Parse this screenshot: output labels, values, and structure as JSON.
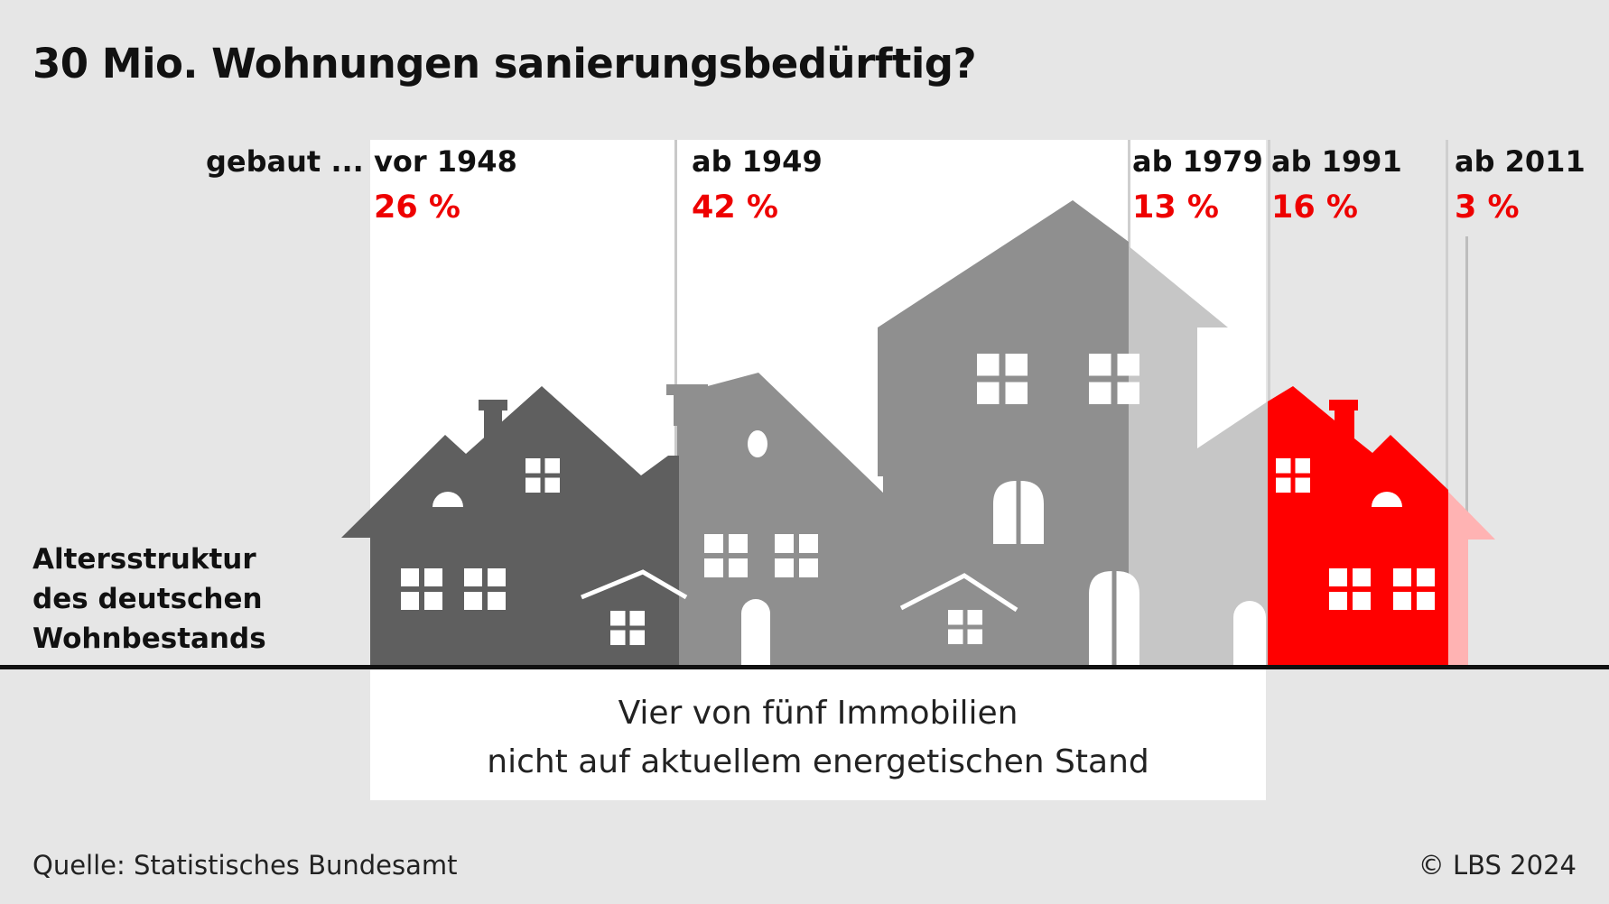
{
  "title": "30 Mio. Wohnungen sanierungsbedürftig?",
  "built_prefix": "gebaut ...",
  "side_label": [
    "Altersstruktur",
    "des deutschen",
    "Wohnbestands"
  ],
  "summary": [
    "Vier von fünf Immobilien",
    "nicht auf aktuellem energetischen Stand"
  ],
  "source": "Quelle: Statistisches Bundesamt",
  "copyright": "© LBS 2024",
  "colors": {
    "background": "#e6e6e6",
    "highlight_panel": "#ffffff",
    "accent_red": "#ee0000",
    "house_vor_1948": "#5f5f5f",
    "house_ab_1949": "#8f8f8f",
    "house_ab_1979": "#c6c6c6",
    "house_ab_1991": "#ff0000",
    "house_ab_2011": "#ffb3b3",
    "window": "#ffffff",
    "ground_line": "#111111"
  },
  "chart_data": {
    "type": "bar",
    "title": "30 Mio. Wohnungen sanierungsbedürftig?",
    "xlabel": "gebaut ...",
    "ylabel": "",
    "unit": "%",
    "categories": [
      "vor 1948",
      "ab 1949",
      "ab 1979",
      "ab 1991",
      "ab 2011"
    ],
    "values": [
      26,
      42,
      13,
      16,
      3
    ],
    "value_labels": [
      "26 %",
      "42 %",
      "13 %",
      "16 %",
      "3 %"
    ],
    "highlighted_categories": [
      "vor 1948",
      "ab 1949",
      "ab 1979"
    ],
    "highlight_note": "Vier von fünf Immobilien nicht auf aktuellem energetischen Stand",
    "grid": false,
    "legend": "none"
  }
}
